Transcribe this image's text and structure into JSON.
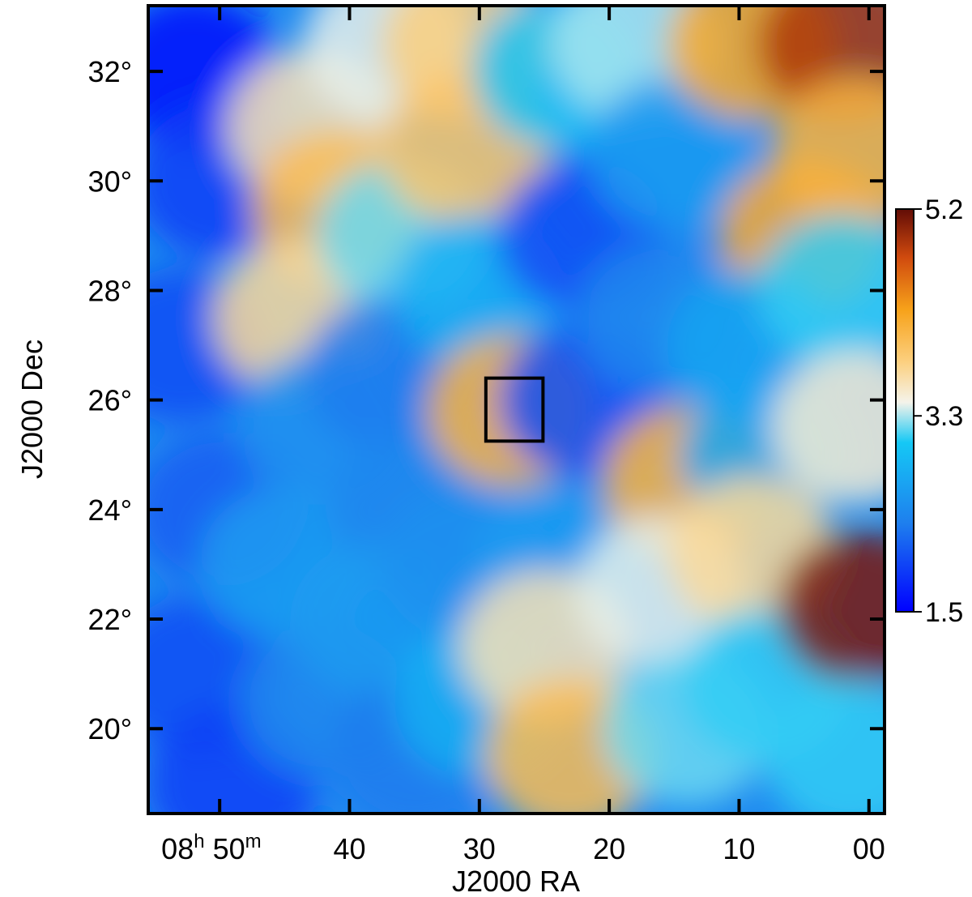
{
  "chart_data": {
    "type": "heatmap",
    "title": "",
    "xlabel": "J2000 RA",
    "ylabel": "J2000 Dec",
    "x_ticks": [
      {
        "value": 50,
        "label_main": "08",
        "label_sup1": "h",
        "label_mid": " 50",
        "label_sup2": "m"
      },
      {
        "value": 40,
        "label_main": "40"
      },
      {
        "value": 30,
        "label_main": "30"
      },
      {
        "value": 20,
        "label_main": "20"
      },
      {
        "value": 10,
        "label_main": "10"
      },
      {
        "value": 0,
        "label_main": "00"
      }
    ],
    "xlim_minutes": [
      55.5,
      -1.2
    ],
    "y_ticks": [
      {
        "value": 20,
        "label": "20°"
      },
      {
        "value": 22,
        "label": "22°"
      },
      {
        "value": 24,
        "label": "24°"
      },
      {
        "value": 26,
        "label": "26°"
      },
      {
        "value": 28,
        "label": "28°"
      },
      {
        "value": 30,
        "label": "30°"
      },
      {
        "value": 32,
        "label": "32°"
      }
    ],
    "ylim_deg": [
      18.45,
      33.2
    ],
    "colorbar": {
      "min": 1.5,
      "max": 5.2,
      "ticks": [
        {
          "value": 5.2,
          "label": "5.2"
        },
        {
          "value": 3.3,
          "label": "3.3"
        },
        {
          "value": 1.5,
          "label": "1.5"
        }
      ],
      "colormap": [
        {
          "t": 0.0,
          "color": "#0000ff"
        },
        {
          "t": 0.22,
          "color": "#1e7fee"
        },
        {
          "t": 0.42,
          "color": "#15c8f5"
        },
        {
          "t": 0.52,
          "color": "#f5f3ea"
        },
        {
          "t": 0.62,
          "color": "#fcd080"
        },
        {
          "t": 0.75,
          "color": "#f7a21a"
        },
        {
          "t": 0.88,
          "color": "#d04a0e"
        },
        {
          "t": 1.0,
          "color": "#620c06"
        }
      ]
    },
    "marked_region": {
      "ra_min_minutes": 25.1,
      "ra_max_minutes": 29.5,
      "dec_min_deg": 25.25,
      "dec_max_deg": 26.4
    },
    "field_samples": {
      "note_units": "RA in minutes of 8h, Dec in degrees, value in colorbar units",
      "points": [
        [
          52,
          32,
          1.6
        ],
        [
          50,
          30,
          1.9
        ],
        [
          53,
          27,
          2.0
        ],
        [
          50,
          24,
          2.1
        ],
        [
          52,
          21,
          2.0
        ],
        [
          49,
          19,
          1.9
        ],
        [
          43,
          31,
          3.6
        ],
        [
          41,
          29.5,
          4.0
        ],
        [
          44,
          27.5,
          3.7
        ],
        [
          42,
          25.5,
          2.5
        ],
        [
          45,
          23,
          2.6
        ],
        [
          42,
          20.5,
          2.4
        ],
        [
          37,
          32.5,
          3.4
        ],
        [
          36,
          29,
          3.2
        ],
        [
          37,
          26.5,
          2.3
        ],
        [
          35,
          24,
          2.4
        ],
        [
          38,
          22,
          2.6
        ],
        [
          35,
          19.5,
          2.3
        ],
        [
          31,
          32.5,
          3.8
        ],
        [
          31,
          30.6,
          3.9
        ],
        [
          30,
          28,
          2.8
        ],
        [
          27.5,
          25.8,
          4.1
        ],
        [
          31,
          23,
          2.5
        ],
        [
          30,
          20.5,
          2.8
        ],
        [
          24,
          32,
          3.0
        ],
        [
          22,
          29,
          2.0
        ],
        [
          22,
          26,
          2.0
        ],
        [
          24,
          23,
          2.6
        ],
        [
          25,
          21.5,
          3.6
        ],
        [
          23,
          19.5,
          4.0
        ],
        [
          18,
          32.5,
          3.3
        ],
        [
          15,
          30.5,
          2.6
        ],
        [
          16,
          27.5,
          2.4
        ],
        [
          14,
          24.5,
          4.1
        ],
        [
          16,
          22.5,
          3.4
        ],
        [
          14,
          20,
          3.2
        ],
        [
          9,
          32.5,
          4.2
        ],
        [
          5,
          29,
          4.2
        ],
        [
          9,
          27,
          2.7
        ],
        [
          8,
          25,
          2.7
        ],
        [
          9,
          23.2,
          3.7
        ],
        [
          8,
          20.8,
          3.1
        ],
        [
          2,
          32.5,
          4.9
        ],
        [
          1,
          30.5,
          4.1
        ],
        [
          2,
          28,
          3.1
        ],
        [
          1,
          25.5,
          3.5
        ],
        [
          0.5,
          22.2,
          5.1
        ],
        [
          1.5,
          19.5,
          3.1
        ]
      ]
    }
  }
}
